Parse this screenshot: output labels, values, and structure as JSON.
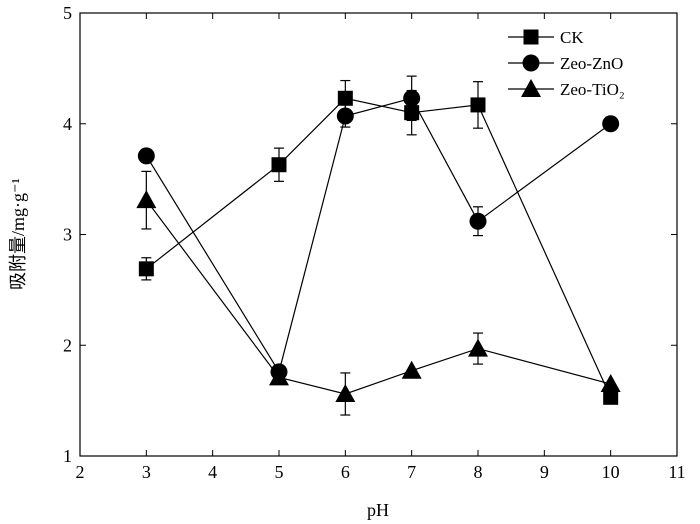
{
  "chart_data": {
    "type": "line",
    "xlabel": "pH",
    "ylabel": "吸附量/mg·g⁻¹",
    "xlim": [
      2,
      11
    ],
    "ylim": [
      1,
      5
    ],
    "xticks": [
      "2",
      "3",
      "4",
      "5",
      "6",
      "7",
      "8",
      "9",
      "10",
      "11"
    ],
    "yticks": [
      "1",
      "2",
      "3",
      "4",
      "5"
    ],
    "grid": false,
    "legend_position": "top-right",
    "series": [
      {
        "name": "CK",
        "marker": "square",
        "x": [
          3,
          5,
          6,
          7,
          8,
          10
        ],
        "y": [
          2.69,
          3.63,
          4.23,
          4.1,
          4.17,
          1.53
        ],
        "err": [
          0.1,
          0.15,
          0.16,
          0.2,
          0.21,
          0.0
        ]
      },
      {
        "name": "Zeo-ZnO",
        "marker": "circle",
        "x": [
          3,
          5,
          6,
          7,
          8,
          10
        ],
        "y": [
          3.71,
          1.76,
          4.07,
          4.23,
          3.12,
          4.0
        ],
        "err": [
          0.0,
          0.0,
          0.1,
          0.2,
          0.13,
          0.0
        ]
      },
      {
        "name": "Zeo-TiO₂",
        "marker": "triangle",
        "x": [
          3,
          5,
          6,
          7,
          8,
          10
        ],
        "y": [
          3.31,
          1.71,
          1.56,
          1.77,
          1.97,
          1.65
        ],
        "err": [
          0.26,
          0.0,
          0.19,
          0.0,
          0.14,
          0.0
        ]
      }
    ]
  }
}
